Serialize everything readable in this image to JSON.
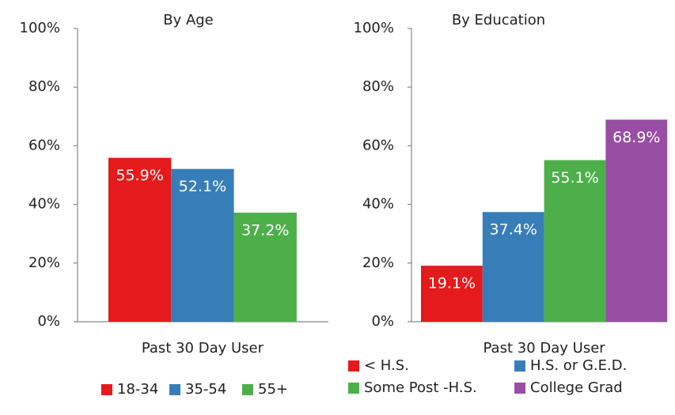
{
  "chart_data": [
    {
      "type": "bar",
      "title": "By Age",
      "categories": [
        "Past 30 Day User"
      ],
      "series": [
        {
          "name": "18-34",
          "color": "#e41a1c",
          "values": [
            55.9
          ],
          "value_labels": [
            "55.9%"
          ]
        },
        {
          "name": "35-54",
          "color": "#377eb8",
          "values": [
            52.1
          ],
          "value_labels": [
            "52.1%"
          ]
        },
        {
          "name": "55+",
          "color": "#4daf4a",
          "values": [
            37.2
          ],
          "value_labels": [
            "37.2%"
          ]
        }
      ],
      "ylim": [
        0,
        100
      ],
      "yticks": [
        {
          "value": 0,
          "label": "0%"
        },
        {
          "value": 20,
          "label": "20%"
        },
        {
          "value": 40,
          "label": "40%"
        },
        {
          "value": 60,
          "label": "60%"
        },
        {
          "value": 80,
          "label": "80%"
        },
        {
          "value": 100,
          "label": "100%"
        }
      ]
    },
    {
      "type": "bar",
      "title": "By Education",
      "categories": [
        "Past 30 Day User"
      ],
      "series": [
        {
          "name": "< H.S.",
          "color": "#e41a1c",
          "values": [
            19.1
          ],
          "value_labels": [
            "19.1%"
          ]
        },
        {
          "name": "H.S. or G.E.D.",
          "color": "#377eb8",
          "values": [
            37.4
          ],
          "value_labels": [
            "37.4%"
          ]
        },
        {
          "name": "Some Post -H.S.",
          "color": "#4daf4a",
          "values": [
            55.1
          ],
          "value_labels": [
            "55.1%"
          ]
        },
        {
          "name": "College Grad",
          "color": "#984ea3",
          "values": [
            68.9
          ],
          "value_labels": [
            "68.9%"
          ]
        }
      ],
      "ylim": [
        0,
        100
      ],
      "yticks": [
        {
          "value": 0,
          "label": "0%"
        },
        {
          "value": 20,
          "label": "20%"
        },
        {
          "value": 40,
          "label": "40%"
        },
        {
          "value": 60,
          "label": "60%"
        },
        {
          "value": 80,
          "label": "80%"
        },
        {
          "value": 100,
          "label": "100%"
        }
      ]
    }
  ]
}
